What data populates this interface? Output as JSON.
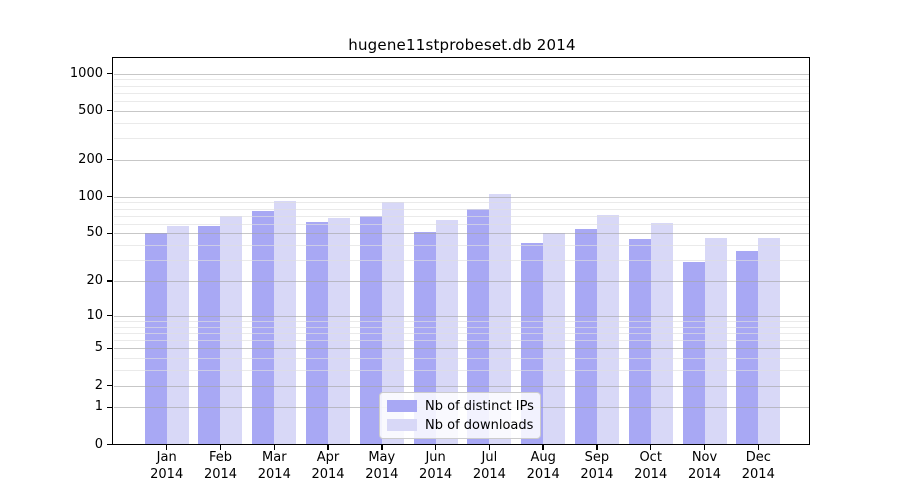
{
  "chart_data": {
    "type": "bar",
    "title": "hugene11stprobeset.db 2014",
    "categories": [
      "Jan",
      "Feb",
      "Mar",
      "Apr",
      "May",
      "Jun",
      "Jul",
      "Aug",
      "Sep",
      "Oct",
      "Nov",
      "Dec"
    ],
    "category_year_line": "2014",
    "series": [
      {
        "name": "Nb of distinct IPs",
        "color": "#a8a8f4",
        "values": [
          50,
          57,
          76,
          62,
          70,
          51,
          80,
          42,
          54,
          45,
          29,
          36
        ]
      },
      {
        "name": "Nb of downloads",
        "color": "#d8d8f7",
        "values": [
          58,
          70,
          93,
          67,
          90,
          64,
          105,
          50,
          71,
          61,
          46,
          46
        ]
      }
    ],
    "y_scale": "log1p",
    "y_ticks": [
      0,
      1,
      2,
      5,
      10,
      20,
      50,
      100,
      200,
      500,
      1000
    ],
    "y_minor_gridlines": [
      3,
      4,
      6,
      7,
      8,
      9,
      30,
      40,
      60,
      70,
      80,
      90,
      300,
      400,
      600,
      700,
      800,
      900
    ],
    "ylim": [
      0,
      1300
    ],
    "xlabel": "",
    "ylabel": "",
    "grid": "horizontal-major-and-minor",
    "legend_position": "lower-center",
    "colors": {
      "background": "#ffffff",
      "axis_frame": "#000000",
      "major_grid": "#c8c8c8",
      "minor_grid": "#ebebeb",
      "bar_ips": "#a8a8f4",
      "bar_downloads": "#d8d8f7"
    }
  }
}
